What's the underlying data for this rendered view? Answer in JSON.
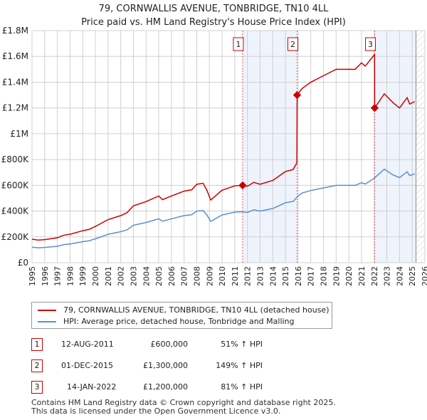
{
  "header": {
    "title": "79, CORNWALLIS AVENUE, TONBRIDGE, TN10 4LL",
    "subtitle": "Price paid vs. HM Land Registry's House Price Index (HPI)"
  },
  "colors": {
    "property": "#cc0000",
    "hpi": "#5b8fd6",
    "shade": "#eef3fc"
  },
  "chart_data": {
    "type": "line",
    "title": "79, CORNWALLIS AVENUE, TONBRIDGE, TN10 4LL — Price paid vs. HM Land Registry's House Price Index (HPI)",
    "xlim": [
      1995,
      2026
    ],
    "ylim": [
      0,
      1800000
    ],
    "x_ticks": [
      "1995",
      "1996",
      "1997",
      "1998",
      "1999",
      "2000",
      "2001",
      "2002",
      "2003",
      "2004",
      "2005",
      "2006",
      "2007",
      "2008",
      "2009",
      "2010",
      "2011",
      "2012",
      "2013",
      "2014",
      "2015",
      "2016",
      "2017",
      "2018",
      "2019",
      "2020",
      "2021",
      "2022",
      "2023",
      "2024",
      "2025",
      "2026"
    ],
    "y_ticks": [
      {
        "v": 0,
        "label": "£0"
      },
      {
        "v": 200000,
        "label": "£200K"
      },
      {
        "v": 400000,
        "label": "£400K"
      },
      {
        "v": 600000,
        "label": "£600K"
      },
      {
        "v": 800000,
        "label": "£800K"
      },
      {
        "v": 1000000,
        "label": "£1M"
      },
      {
        "v": 1200000,
        "label": "£1.2M"
      },
      {
        "v": 1400000,
        "label": "£1.4M"
      },
      {
        "v": 1600000,
        "label": "£1.6M"
      },
      {
        "v": 1800000,
        "label": "£1.8M"
      }
    ],
    "series": [
      {
        "name": "79, CORNWALLIS AVENUE, TONBRIDGE, TN10 4LL (detached house)",
        "color": "#cc0000",
        "points": [
          [
            1995,
            182
          ],
          [
            1995.5,
            175
          ],
          [
            1996,
            179
          ],
          [
            1997,
            193
          ],
          [
            1997.5,
            213
          ],
          [
            1998,
            220
          ],
          [
            1999,
            248
          ],
          [
            1999.5,
            258
          ],
          [
            2000,
            281
          ],
          [
            2001,
            334
          ],
          [
            2002,
            365
          ],
          [
            2002.5,
            388
          ],
          [
            2003,
            441
          ],
          [
            2004,
            474
          ],
          [
            2005,
            517
          ],
          [
            2005.3,
            489
          ],
          [
            2006,
            517
          ],
          [
            2007,
            555
          ],
          [
            2007.6,
            565
          ],
          [
            2008,
            608
          ],
          [
            2008.5,
            616
          ],
          [
            2008.8,
            562
          ],
          [
            2009.1,
            486
          ],
          [
            2010,
            562
          ],
          [
            2011,
            596
          ],
          [
            2011.6,
            600
          ],
          [
            2012,
            593
          ],
          [
            2012.5,
            623
          ],
          [
            2013,
            608
          ],
          [
            2014,
            638
          ],
          [
            2015,
            707
          ],
          [
            2015.6,
            722
          ],
          [
            2015.9,
            775
          ],
          [
            2015.92,
            1300
          ],
          [
            2016.3,
            1350
          ],
          [
            2017,
            1400
          ],
          [
            2018,
            1450
          ],
          [
            2019,
            1500
          ],
          [
            2020,
            1500
          ],
          [
            2020.5,
            1500
          ],
          [
            2021,
            1550
          ],
          [
            2021.3,
            1525
          ],
          [
            2022.03,
            1615
          ],
          [
            2022.04,
            1200
          ],
          [
            2022.8,
            1310
          ],
          [
            2023.5,
            1240
          ],
          [
            2024,
            1200
          ],
          [
            2024.6,
            1280
          ],
          [
            2024.8,
            1230
          ],
          [
            2025.2,
            1250
          ]
        ]
      },
      {
        "name": "HPI: Average price, detached house, Tonbridge and Malling",
        "color": "#5b8fd6",
        "points": [
          [
            1995,
            120
          ],
          [
            1995.5,
            115
          ],
          [
            1996,
            118
          ],
          [
            1997,
            127
          ],
          [
            1997.5,
            140
          ],
          [
            1998,
            145
          ],
          [
            1999,
            163
          ],
          [
            1999.5,
            170
          ],
          [
            2000,
            185
          ],
          [
            2001,
            220
          ],
          [
            2002,
            240
          ],
          [
            2002.5,
            255
          ],
          [
            2003,
            290
          ],
          [
            2004,
            312
          ],
          [
            2005,
            340
          ],
          [
            2005.3,
            322
          ],
          [
            2006,
            340
          ],
          [
            2007,
            365
          ],
          [
            2007.6,
            372
          ],
          [
            2008,
            400
          ],
          [
            2008.5,
            405
          ],
          [
            2008.8,
            370
          ],
          [
            2009.1,
            320
          ],
          [
            2010,
            370
          ],
          [
            2011,
            392
          ],
          [
            2011.6,
            395
          ],
          [
            2012,
            390
          ],
          [
            2012.5,
            410
          ],
          [
            2013,
            400
          ],
          [
            2014,
            420
          ],
          [
            2015,
            465
          ],
          [
            2015.6,
            475
          ],
          [
            2015.92,
            510
          ],
          [
            2016.3,
            540
          ],
          [
            2017,
            560
          ],
          [
            2018,
            580
          ],
          [
            2019,
            600
          ],
          [
            2020,
            600
          ],
          [
            2020.5,
            600
          ],
          [
            2021,
            620
          ],
          [
            2021.3,
            610
          ],
          [
            2022,
            655
          ],
          [
            2022.8,
            725
          ],
          [
            2023.5,
            680
          ],
          [
            2024,
            660
          ],
          [
            2024.6,
            705
          ],
          [
            2024.8,
            675
          ],
          [
            2025.2,
            690
          ]
        ]
      }
    ],
    "value_units": "£ thousands",
    "sales": [
      {
        "n": "1",
        "x": 2011.62,
        "v": 600
      },
      {
        "n": "2",
        "x": 2015.92,
        "v": 1300
      },
      {
        "n": "3",
        "x": 2022.04,
        "v": 1200
      }
    ],
    "data_end": 2025.3,
    "grid": true
  },
  "legend": {
    "property": "79, CORNWALLIS AVENUE, TONBRIDGE, TN10 4LL (detached house)",
    "hpi": "HPI: Average price, detached house, Tonbridge and Malling"
  },
  "transactions": [
    {
      "n": "1",
      "date": "12-AUG-2011",
      "price": "£600,000",
      "hpi": "51% ↑ HPI"
    },
    {
      "n": "2",
      "date": "01-DEC-2015",
      "price": "£1,300,000",
      "hpi": "149% ↑ HPI"
    },
    {
      "n": "3",
      "date": "14-JAN-2022",
      "price": "£1,200,000",
      "hpi": "81% ↑ HPI"
    }
  ],
  "footer": {
    "line1": "Contains HM Land Registry data © Crown copyright and database right 2025.",
    "line2": "This data is licensed under the Open Government Licence v3.0."
  }
}
